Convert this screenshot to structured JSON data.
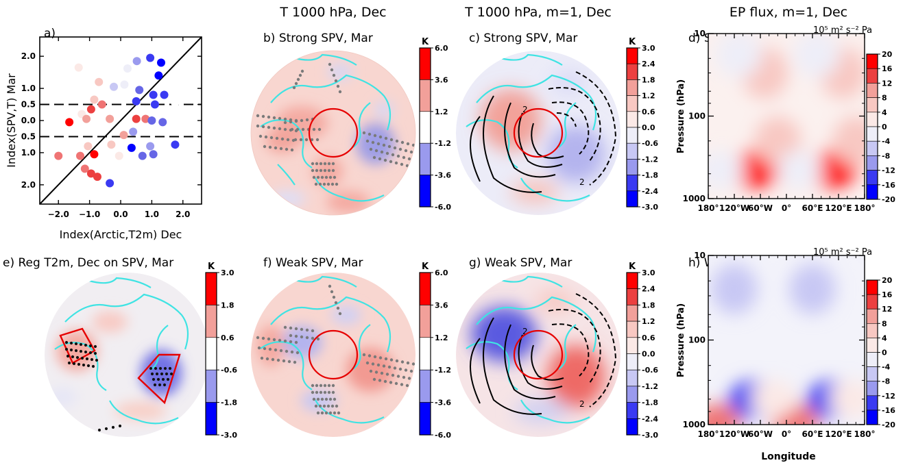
{
  "colors": {
    "coast": "#3fe3e3",
    "marker_red": "#e60000",
    "marker_blue": "#2a33d8",
    "contour": "#000000",
    "stipple": "#7a7a7a",
    "palette": [
      "#0000ff",
      "#3a3af2",
      "#6666e6",
      "#9a9aee",
      "#c8c8f4",
      "#eeeef8",
      "#ffffff",
      "#fbe9e6",
      "#f8c8c2",
      "#f2a09a",
      "#ef7474",
      "#ec4040",
      "#ff0000"
    ]
  },
  "column_headers": [
    "T 1000 hPa, Dec",
    "T 1000 hPa, m=1, Dec",
    "EP flux, m=1, Dec"
  ],
  "panels": {
    "a": {
      "label": "a)"
    },
    "b": {
      "label": "b) Strong SPV, Mar"
    },
    "c": {
      "label": "c) Strong SPV, Mar"
    },
    "d": {
      "label": "d) Strong SPV, Mar"
    },
    "e": {
      "label": "e) Reg T2m, Dec on SPV, Mar"
    },
    "f": {
      "label": "f) Weak SPV, Mar"
    },
    "g": {
      "label": "g) Weak SPV, Mar"
    },
    "h": {
      "label": "h) Weak SPV, Mar"
    }
  },
  "contour_label": "2",
  "units": {
    "K": "K",
    "epflux": "10⁵ m² s⁻² Pa"
  },
  "colorbars": {
    "b": [
      "6.0",
      "3.6",
      "1.2",
      "-1.2",
      "-3.6",
      "-6.0"
    ],
    "c": [
      "3.0",
      "2.4",
      "1.8",
      "1.2",
      "0.6",
      "0.0",
      "-0.6",
      "-1.2",
      "-1.8",
      "-2.4",
      "-3.0"
    ],
    "e": [
      "3.0",
      "1.8",
      "0.6",
      "-0.6",
      "-1.8",
      "-3.0"
    ],
    "f": [
      "6.0",
      "3.6",
      "1.2",
      "-1.2",
      "-3.6",
      "-6.0"
    ],
    "g": [
      "3.0",
      "2.4",
      "1.8",
      "1.2",
      "0.6",
      "0.0",
      "-0.6",
      "-1.2",
      "-1.8",
      "-2.4",
      "-3.0"
    ],
    "d": [
      "20",
      "16",
      "12",
      "8",
      "4",
      "0",
      "-4",
      "-8",
      "-12",
      "-16",
      "-20"
    ],
    "h": [
      "20",
      "16",
      "12",
      "8",
      "4",
      "0",
      "-4",
      "-8",
      "-12",
      "-16",
      "-20"
    ]
  },
  "ep_axes": {
    "ylabel": "Pressure (hPa)",
    "yticks": [
      "10",
      "100",
      "1000"
    ],
    "xticks": [
      "180°",
      "120°W",
      "60°W",
      "0°",
      "60°E",
      "120°E",
      "180°"
    ],
    "xlabel": "Longitude"
  },
  "chart_data": [
    {
      "type": "scatter",
      "panel": "a",
      "xlabel": "Index(Arctic,T2m) Dec",
      "ylabel": "Index(SPV,T) Mar",
      "xlim": [
        -2.6,
        2.6
      ],
      "ylim": [
        -2.6,
        2.6
      ],
      "xticks": [
        "−2.0",
        "−1.0",
        "0.0",
        "1.0",
        "2.0"
      ],
      "yticks": [
        "2.0",
        "1.0",
        "0.5",
        "0.0",
        "0.5",
        "1.0",
        "2.0"
      ],
      "ytick_values": [
        2.0,
        1.0,
        0.5,
        0.0,
        -0.5,
        -1.0,
        -2.0
      ],
      "hlines": [
        0.5,
        -0.5
      ],
      "diagonal": true,
      "points": [
        {
          "x": -1.35,
          "y": 1.65,
          "c": 0.2
        },
        {
          "x": -0.7,
          "y": 1.2,
          "c": 0.35
        },
        {
          "x": 0.22,
          "y": 1.62,
          "c": -0.1
        },
        {
          "x": 0.52,
          "y": 1.85,
          "c": -0.5
        },
        {
          "x": 0.95,
          "y": 1.95,
          "c": -0.9
        },
        {
          "x": 1.3,
          "y": 1.8,
          "c": -1.0
        },
        {
          "x": 1.22,
          "y": 1.4,
          "c": -1.0
        },
        {
          "x": 0.12,
          "y": 1.12,
          "c": -0.2
        },
        {
          "x": -0.22,
          "y": 1.05,
          "c": -0.3
        },
        {
          "x": 0.6,
          "y": 0.95,
          "c": -0.6
        },
        {
          "x": 1.05,
          "y": 0.8,
          "c": -0.85
        },
        {
          "x": 1.4,
          "y": 0.8,
          "c": -0.8
        },
        {
          "x": 0.5,
          "y": 0.6,
          "c": -0.9
        },
        {
          "x": 1.1,
          "y": 0.5,
          "c": -0.8
        },
        {
          "x": 1.75,
          "y": 0.55,
          "c": -0.05
        },
        {
          "x": -0.85,
          "y": 0.65,
          "c": 0.4
        },
        {
          "x": -0.6,
          "y": 0.5,
          "c": 0.7
        },
        {
          "x": -0.95,
          "y": 0.35,
          "c": 0.8
        },
        {
          "x": -1.25,
          "y": 0.2,
          "c": 0.15
        },
        {
          "x": -1.65,
          "y": -0.05,
          "c": 1.0
        },
        {
          "x": -1.1,
          "y": 0.05,
          "c": 0.55
        },
        {
          "x": -0.35,
          "y": 0.05,
          "c": 0.45
        },
        {
          "x": 0.5,
          "y": 0.05,
          "c": 0.9
        },
        {
          "x": 0.8,
          "y": 0.05,
          "c": 0.65
        },
        {
          "x": 1.0,
          "y": 0.0,
          "c": -0.6
        },
        {
          "x": 1.35,
          "y": -0.05,
          "c": -0.6
        },
        {
          "x": 0.4,
          "y": -0.35,
          "c": -0.5
        },
        {
          "x": -1.05,
          "y": -0.8,
          "c": 0.25
        },
        {
          "x": -0.3,
          "y": -0.75,
          "c": 0.3
        },
        {
          "x": 0.1,
          "y": -0.45,
          "c": 0.5
        },
        {
          "x": 0.35,
          "y": -0.85,
          "c": -1.0
        },
        {
          "x": 0.95,
          "y": -0.8,
          "c": -0.55
        },
        {
          "x": 1.75,
          "y": -0.75,
          "c": -0.9
        },
        {
          "x": -2.0,
          "y": -1.1,
          "c": 0.7
        },
        {
          "x": -1.3,
          "y": -1.1,
          "c": 0.6
        },
        {
          "x": -0.85,
          "y": -1.05,
          "c": 0.95
        },
        {
          "x": -0.05,
          "y": -1.1,
          "c": 0.2
        },
        {
          "x": 0.7,
          "y": -1.1,
          "c": -0.6
        },
        {
          "x": 1.05,
          "y": -1.05,
          "c": -0.7
        },
        {
          "x": -1.15,
          "y": -1.5,
          "c": 0.7
        },
        {
          "x": -0.95,
          "y": -1.65,
          "c": 0.85
        },
        {
          "x": -0.75,
          "y": -1.75,
          "c": 0.9
        },
        {
          "x": -0.35,
          "y": -1.95,
          "c": -0.8
        }
      ]
    },
    {
      "type": "heatmap",
      "panel": "d",
      "title": "d) Strong SPV, Mar",
      "units": "10⁵ m² s⁻² Pa",
      "ylabel": "Pressure (hPa)",
      "clim": [
        -20,
        20
      ],
      "blobs": [
        {
          "lon": -70,
          "p": 450,
          "v": 20
        },
        {
          "lon": 110,
          "p": 450,
          "v": 20
        },
        {
          "lon": -20,
          "p": 200,
          "v": 6
        },
        {
          "lon": 160,
          "p": 200,
          "v": 6
        },
        {
          "lon": -50,
          "p": 30,
          "v": 8
        },
        {
          "lon": 130,
          "p": 30,
          "v": 8
        },
        {
          "lon": -110,
          "p": 18,
          "v": -4
        },
        {
          "lon": 70,
          "p": 18,
          "v": -4
        },
        {
          "lon": -150,
          "p": 450,
          "v": -5
        },
        {
          "lon": 30,
          "p": 450,
          "v": -4
        }
      ]
    },
    {
      "type": "heatmap",
      "panel": "h",
      "title": "h) Weak SPV, Mar",
      "units": "10⁵ m² s⁻² Pa",
      "ylabel": "Pressure (hPa)",
      "xlabel": "Longitude",
      "clim": [
        -20,
        20
      ],
      "blobs": [
        {
          "lon": -80,
          "p": 500,
          "v": -17
        },
        {
          "lon": 100,
          "p": 500,
          "v": -17
        },
        {
          "lon": -120,
          "p": 25,
          "v": -7
        },
        {
          "lon": 60,
          "p": 25,
          "v": -7
        },
        {
          "lon": -160,
          "p": 950,
          "v": 12
        },
        {
          "lon": 20,
          "p": 950,
          "v": 12
        },
        {
          "lon": -30,
          "p": 500,
          "v": 4
        },
        {
          "lon": 150,
          "p": 500,
          "v": 4
        }
      ]
    }
  ]
}
